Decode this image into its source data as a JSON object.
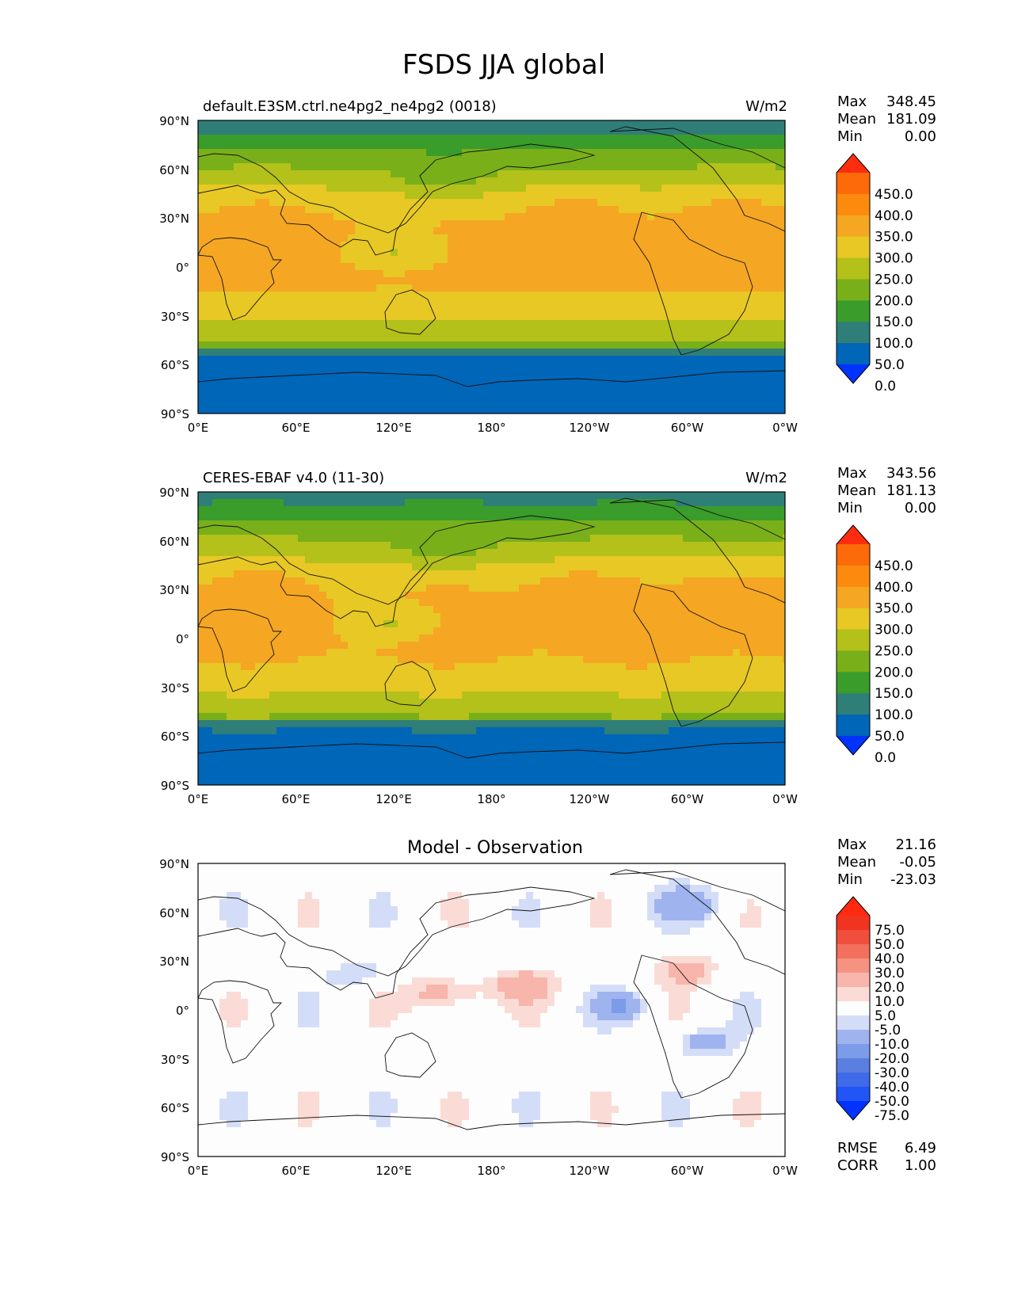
{
  "title": "FSDS JJA global",
  "lat_ticks": [
    "90°N",
    "60°N",
    "30°N",
    "0°",
    "30°S",
    "60°S",
    "90°S"
  ],
  "lon_ticks": [
    "0°E",
    "60°E",
    "120°E",
    "180°",
    "120°W",
    "60°W",
    "0°W"
  ],
  "panels": [
    {
      "id": "model",
      "left_title": "default.E3SM.ctrl.ne4pg2_ne4pg2 (0018)",
      "center_title": "",
      "units": "W/m2",
      "stats": [
        [
          "Max",
          "348.45"
        ],
        [
          "Mean",
          "181.09"
        ],
        [
          "Min",
          "0.00"
        ]
      ],
      "cbar_ticks": [
        "450.0",
        "400.0",
        "350.0",
        "300.0",
        "250.0",
        "200.0",
        "150.0",
        "100.0",
        "50.0",
        "0.0"
      ],
      "cbar_colors": [
        "#0033ff",
        "#0066b8",
        "#2f7f78",
        "#3a9c2a",
        "#79b01a",
        "#b3c11a",
        "#e8c824",
        "#f5a623",
        "#fb8a0f",
        "#fd6a09",
        "#ff2d0f"
      ],
      "footer": []
    },
    {
      "id": "obs",
      "left_title": "CERES-EBAF v4.0 (11-30)",
      "center_title": "",
      "units": "W/m2",
      "stats": [
        [
          "Max",
          "343.56"
        ],
        [
          "Mean",
          "181.13"
        ],
        [
          "Min",
          "0.00"
        ]
      ],
      "cbar_ticks": [
        "450.0",
        "400.0",
        "350.0",
        "300.0",
        "250.0",
        "200.0",
        "150.0",
        "100.0",
        "50.0",
        "0.0"
      ],
      "cbar_colors": [
        "#0033ff",
        "#0066b8",
        "#2f7f78",
        "#3a9c2a",
        "#79b01a",
        "#b3c11a",
        "#e8c824",
        "#f5a623",
        "#fb8a0f",
        "#fd6a09",
        "#ff2d0f"
      ],
      "footer": []
    },
    {
      "id": "diff",
      "left_title": "",
      "center_title": "Model - Observation",
      "units": "",
      "stats": [
        [
          "Max",
          "21.16"
        ],
        [
          "Mean",
          "-0.05"
        ],
        [
          "Min",
          "-23.03"
        ]
      ],
      "cbar_ticks": [
        "75.0",
        "50.0",
        "40.0",
        "30.0",
        "20.0",
        "10.0",
        "5.0",
        "-5.0",
        "-10.0",
        "-20.0",
        "-30.0",
        "-40.0",
        "-50.0",
        "-75.0"
      ],
      "cbar_colors": [
        "#0033ff",
        "#2255f5",
        "#3f6ae8",
        "#5a7fe0",
        "#7c9be8",
        "#9fb3ee",
        "#d4ddf8",
        "#fdfdfd",
        "#fbdbd6",
        "#f8b5ab",
        "#f59282",
        "#f2705d",
        "#ef4f3c",
        "#f0341f",
        "#ff2a10"
      ],
      "footer": [
        [
          "RMSE",
          "6.49"
        ],
        [
          "CORR",
          "1.00"
        ]
      ]
    }
  ]
}
